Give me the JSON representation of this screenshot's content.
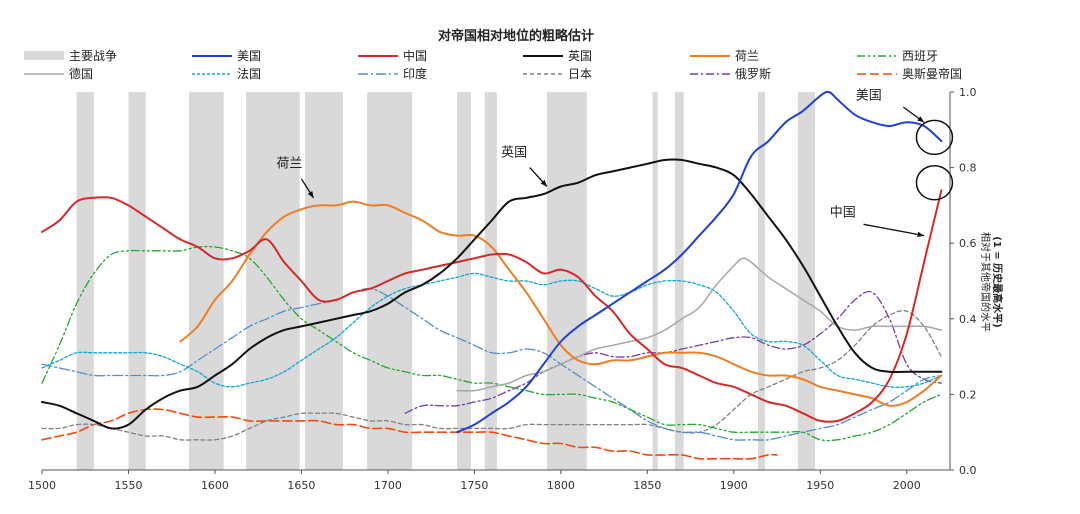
{
  "chart_data": {
    "type": "line",
    "title": "对帝国相对地位的粗略估计",
    "xlabel": "",
    "ylabel": "相对于其他帝国的水平",
    "ylabel_sub": "(1 = 历史最高水平)",
    "xlim": [
      1500,
      2025
    ],
    "ylim": [
      0,
      1.0
    ],
    "x_ticks": [
      "1500",
      "1550",
      "1600",
      "1650",
      "1700",
      "1750",
      "1800",
      "1850",
      "1900",
      "1950",
      "2000"
    ],
    "y_ticks": [
      "0.0",
      "0.2",
      "0.4",
      "0.6",
      "0.8",
      "1.0"
    ],
    "grid": false,
    "legend_position": "top",
    "war_label": "主要战争",
    "war_color": "#d9d9d9",
    "wars": [
      [
        1520,
        1530
      ],
      [
        1550,
        1560
      ],
      [
        1585,
        1605
      ],
      [
        1618,
        1649
      ],
      [
        1652,
        1674
      ],
      [
        1688,
        1714
      ],
      [
        1740,
        1748
      ],
      [
        1756,
        1763
      ],
      [
        1792,
        1815
      ],
      [
        1853,
        1856
      ],
      [
        1866,
        1871
      ],
      [
        1914,
        1918
      ],
      [
        1937,
        1947
      ]
    ],
    "series": [
      {
        "name": "美国",
        "color": "#1f3fd6",
        "dash": "solid",
        "width": 2,
        "x": [
          1740,
          1750,
          1760,
          1770,
          1780,
          1790,
          1800,
          1810,
          1820,
          1830,
          1840,
          1850,
          1860,
          1870,
          1880,
          1890,
          1900,
          1910,
          1920,
          1930,
          1940,
          1950,
          1955,
          1960,
          1970,
          1980,
          1990,
          2000,
          2010,
          2020
        ],
        "y": [
          0.1,
          0.12,
          0.15,
          0.18,
          0.22,
          0.28,
          0.34,
          0.38,
          0.41,
          0.44,
          0.47,
          0.5,
          0.53,
          0.57,
          0.62,
          0.67,
          0.73,
          0.83,
          0.87,
          0.92,
          0.95,
          0.99,
          1.0,
          0.98,
          0.94,
          0.92,
          0.91,
          0.92,
          0.91,
          0.87
        ]
      },
      {
        "name": "中国",
        "color": "#d62828",
        "dash": "solid",
        "width": 2,
        "x": [
          1500,
          1510,
          1520,
          1530,
          1540,
          1550,
          1560,
          1570,
          1580,
          1590,
          1600,
          1610,
          1620,
          1630,
          1640,
          1650,
          1660,
          1670,
          1680,
          1690,
          1700,
          1710,
          1720,
          1730,
          1740,
          1750,
          1760,
          1770,
          1780,
          1790,
          1800,
          1810,
          1820,
          1830,
          1840,
          1850,
          1860,
          1870,
          1880,
          1890,
          1900,
          1910,
          1920,
          1930,
          1940,
          1950,
          1960,
          1970,
          1980,
          1990,
          2000,
          2010,
          2020
        ],
        "y": [
          0.63,
          0.66,
          0.71,
          0.72,
          0.72,
          0.7,
          0.67,
          0.64,
          0.61,
          0.59,
          0.56,
          0.56,
          0.58,
          0.61,
          0.55,
          0.5,
          0.45,
          0.45,
          0.47,
          0.48,
          0.5,
          0.52,
          0.53,
          0.54,
          0.55,
          0.56,
          0.57,
          0.57,
          0.55,
          0.52,
          0.53,
          0.51,
          0.46,
          0.42,
          0.36,
          0.32,
          0.28,
          0.27,
          0.25,
          0.23,
          0.22,
          0.2,
          0.18,
          0.17,
          0.15,
          0.13,
          0.13,
          0.15,
          0.18,
          0.24,
          0.36,
          0.55,
          0.74
        ]
      },
      {
        "name": "英国",
        "color": "#111111",
        "dash": "solid",
        "width": 2,
        "x": [
          1500,
          1510,
          1520,
          1530,
          1540,
          1550,
          1560,
          1570,
          1580,
          1590,
          1600,
          1610,
          1620,
          1630,
          1640,
          1650,
          1660,
          1670,
          1680,
          1690,
          1700,
          1710,
          1720,
          1730,
          1740,
          1750,
          1760,
          1770,
          1780,
          1790,
          1800,
          1810,
          1820,
          1830,
          1840,
          1850,
          1860,
          1870,
          1880,
          1890,
          1900,
          1910,
          1920,
          1930,
          1940,
          1950,
          1960,
          1970,
          1980,
          1990,
          2000,
          2010,
          2020
        ],
        "y": [
          0.18,
          0.17,
          0.15,
          0.13,
          0.11,
          0.12,
          0.16,
          0.19,
          0.21,
          0.22,
          0.25,
          0.28,
          0.32,
          0.35,
          0.37,
          0.38,
          0.39,
          0.4,
          0.41,
          0.42,
          0.44,
          0.47,
          0.49,
          0.52,
          0.56,
          0.61,
          0.66,
          0.71,
          0.72,
          0.73,
          0.75,
          0.76,
          0.78,
          0.79,
          0.8,
          0.81,
          0.82,
          0.82,
          0.81,
          0.8,
          0.78,
          0.73,
          0.67,
          0.61,
          0.54,
          0.46,
          0.38,
          0.31,
          0.27,
          0.26,
          0.26,
          0.26,
          0.26
        ]
      },
      {
        "name": "荷兰",
        "color": "#ef7d22",
        "dash": "solid",
        "width": 2,
        "x": [
          1580,
          1590,
          1600,
          1610,
          1620,
          1630,
          1640,
          1650,
          1660,
          1670,
          1680,
          1690,
          1700,
          1710,
          1720,
          1730,
          1740,
          1750,
          1760,
          1770,
          1780,
          1790,
          1800,
          1810,
          1820,
          1830,
          1840,
          1850,
          1860,
          1870,
          1880,
          1890,
          1900,
          1910,
          1920,
          1930,
          1940,
          1950,
          1960,
          1970,
          1980,
          1990,
          2000,
          2010,
          2020
        ],
        "y": [
          0.34,
          0.38,
          0.45,
          0.5,
          0.57,
          0.63,
          0.67,
          0.69,
          0.7,
          0.7,
          0.71,
          0.7,
          0.7,
          0.68,
          0.66,
          0.63,
          0.62,
          0.62,
          0.59,
          0.53,
          0.47,
          0.4,
          0.33,
          0.29,
          0.28,
          0.29,
          0.29,
          0.3,
          0.31,
          0.31,
          0.31,
          0.3,
          0.28,
          0.26,
          0.25,
          0.25,
          0.24,
          0.22,
          0.21,
          0.2,
          0.19,
          0.17,
          0.18,
          0.21,
          0.25
        ]
      },
      {
        "name": "西班牙",
        "color": "#1faa2a",
        "dash": "8 3 2 3 2 3",
        "width": 1.3,
        "x": [
          1500,
          1510,
          1520,
          1530,
          1540,
          1550,
          1560,
          1570,
          1580,
          1590,
          1600,
          1610,
          1620,
          1630,
          1640,
          1650,
          1660,
          1670,
          1680,
          1690,
          1700,
          1710,
          1720,
          1730,
          1740,
          1750,
          1760,
          1770,
          1780,
          1790,
          1800,
          1810,
          1820,
          1830,
          1840,
          1850,
          1860,
          1870,
          1880,
          1890,
          1900,
          1910,
          1920,
          1930,
          1940,
          1950,
          1960,
          1970,
          1980,
          1990,
          2000,
          2010,
          2020
        ],
        "y": [
          0.23,
          0.33,
          0.44,
          0.52,
          0.57,
          0.58,
          0.58,
          0.58,
          0.58,
          0.59,
          0.59,
          0.58,
          0.56,
          0.51,
          0.45,
          0.4,
          0.37,
          0.34,
          0.31,
          0.29,
          0.27,
          0.26,
          0.25,
          0.25,
          0.24,
          0.23,
          0.23,
          0.22,
          0.21,
          0.2,
          0.2,
          0.2,
          0.19,
          0.18,
          0.16,
          0.14,
          0.12,
          0.12,
          0.12,
          0.11,
          0.1,
          0.1,
          0.1,
          0.1,
          0.1,
          0.08,
          0.08,
          0.09,
          0.1,
          0.12,
          0.15,
          0.18,
          0.2
        ]
      },
      {
        "name": "德国",
        "color": "#a6a6a6",
        "dash": "solid",
        "width": 1.5,
        "x": [
          1740,
          1750,
          1760,
          1770,
          1780,
          1790,
          1800,
          1810,
          1820,
          1830,
          1840,
          1850,
          1860,
          1870,
          1880,
          1890,
          1900,
          1905,
          1910,
          1920,
          1930,
          1940,
          1950,
          1960,
          1970,
          1980,
          1990,
          2000,
          2010,
          2020
        ],
        "y": [
          0.21,
          0.21,
          0.22,
          0.23,
          0.25,
          0.26,
          0.28,
          0.3,
          0.32,
          0.33,
          0.34,
          0.35,
          0.37,
          0.4,
          0.43,
          0.49,
          0.54,
          0.56,
          0.55,
          0.51,
          0.48,
          0.45,
          0.42,
          0.38,
          0.37,
          0.38,
          0.38,
          0.38,
          0.38,
          0.37
        ]
      },
      {
        "name": "法国",
        "color": "#13a7d2",
        "dash": "3 2",
        "width": 1.3,
        "x": [
          1500,
          1510,
          1520,
          1530,
          1540,
          1550,
          1560,
          1570,
          1580,
          1590,
          1600,
          1610,
          1620,
          1630,
          1640,
          1650,
          1660,
          1670,
          1680,
          1690,
          1700,
          1710,
          1720,
          1730,
          1740,
          1750,
          1760,
          1770,
          1780,
          1790,
          1800,
          1810,
          1820,
          1830,
          1840,
          1850,
          1860,
          1870,
          1880,
          1890,
          1900,
          1910,
          1920,
          1930,
          1940,
          1950,
          1960,
          1970,
          1980,
          1990,
          2000,
          2010,
          2020
        ],
        "y": [
          0.27,
          0.29,
          0.31,
          0.31,
          0.31,
          0.31,
          0.31,
          0.3,
          0.28,
          0.26,
          0.23,
          0.22,
          0.23,
          0.24,
          0.26,
          0.29,
          0.32,
          0.35,
          0.39,
          0.43,
          0.46,
          0.48,
          0.49,
          0.5,
          0.51,
          0.52,
          0.51,
          0.5,
          0.5,
          0.49,
          0.5,
          0.5,
          0.48,
          0.46,
          0.47,
          0.49,
          0.5,
          0.5,
          0.49,
          0.47,
          0.42,
          0.36,
          0.34,
          0.34,
          0.33,
          0.29,
          0.25,
          0.24,
          0.23,
          0.22,
          0.22,
          0.23,
          0.25
        ]
      },
      {
        "name": "印度",
        "color": "#4f8fcf",
        "dash": "10 3 2 3",
        "width": 1.3,
        "x": [
          1500,
          1510,
          1520,
          1530,
          1540,
          1550,
          1560,
          1570,
          1580,
          1590,
          1600,
          1610,
          1620,
          1630,
          1640,
          1650,
          1660,
          1670,
          1680,
          1690,
          1700,
          1710,
          1720,
          1730,
          1740,
          1750,
          1760,
          1770,
          1780,
          1790,
          1800,
          1810,
          1820,
          1830,
          1840,
          1850,
          1860,
          1870,
          1880,
          1890,
          1900,
          1910,
          1920,
          1930,
          1940,
          1950,
          1960,
          1970,
          1980,
          1990,
          2000,
          2010,
          2020
        ],
        "y": [
          0.28,
          0.27,
          0.26,
          0.25,
          0.25,
          0.25,
          0.25,
          0.25,
          0.26,
          0.29,
          0.32,
          0.35,
          0.38,
          0.4,
          0.42,
          0.43,
          0.44,
          0.45,
          0.47,
          0.48,
          0.46,
          0.43,
          0.4,
          0.37,
          0.35,
          0.33,
          0.31,
          0.31,
          0.32,
          0.31,
          0.28,
          0.25,
          0.22,
          0.19,
          0.16,
          0.13,
          0.11,
          0.1,
          0.1,
          0.09,
          0.08,
          0.08,
          0.08,
          0.09,
          0.1,
          0.11,
          0.12,
          0.14,
          0.16,
          0.18,
          0.21,
          0.24,
          0.25
        ]
      },
      {
        "name": "日本",
        "color": "#808080",
        "dash": "4 3",
        "width": 1.3,
        "x": [
          1500,
          1510,
          1520,
          1530,
          1540,
          1550,
          1560,
          1570,
          1580,
          1590,
          1600,
          1610,
          1620,
          1630,
          1640,
          1650,
          1660,
          1670,
          1680,
          1690,
          1700,
          1710,
          1720,
          1730,
          1740,
          1750,
          1760,
          1770,
          1780,
          1790,
          1800,
          1810,
          1820,
          1830,
          1840,
          1850,
          1860,
          1870,
          1880,
          1890,
          1900,
          1910,
          1920,
          1930,
          1940,
          1950,
          1960,
          1970,
          1980,
          1990,
          2000,
          2010,
          2020
        ],
        "y": [
          0.11,
          0.11,
          0.12,
          0.12,
          0.11,
          0.1,
          0.09,
          0.09,
          0.08,
          0.08,
          0.08,
          0.09,
          0.11,
          0.13,
          0.14,
          0.15,
          0.15,
          0.15,
          0.14,
          0.13,
          0.13,
          0.12,
          0.12,
          0.11,
          0.11,
          0.11,
          0.11,
          0.11,
          0.12,
          0.12,
          0.12,
          0.12,
          0.12,
          0.12,
          0.12,
          0.12,
          0.11,
          0.1,
          0.1,
          0.12,
          0.16,
          0.2,
          0.22,
          0.24,
          0.26,
          0.27,
          0.29,
          0.33,
          0.38,
          0.41,
          0.42,
          0.38,
          0.3
        ]
      },
      {
        "name": "俄罗斯",
        "color": "#7b3aa8",
        "dash": "8 3 2 3",
        "width": 1.3,
        "x": [
          1710,
          1720,
          1730,
          1740,
          1750,
          1760,
          1770,
          1780,
          1790,
          1800,
          1810,
          1820,
          1830,
          1840,
          1850,
          1860,
          1870,
          1880,
          1890,
          1900,
          1910,
          1920,
          1930,
          1940,
          1950,
          1960,
          1970,
          1980,
          1990,
          2000,
          2010,
          2020
        ],
        "y": [
          0.15,
          0.17,
          0.17,
          0.17,
          0.18,
          0.19,
          0.21,
          0.23,
          0.26,
          0.28,
          0.3,
          0.31,
          0.3,
          0.3,
          0.31,
          0.31,
          0.32,
          0.33,
          0.34,
          0.35,
          0.35,
          0.33,
          0.32,
          0.33,
          0.36,
          0.4,
          0.45,
          0.47,
          0.4,
          0.28,
          0.24,
          0.23
        ]
      },
      {
        "name": "奥斯曼帝国",
        "color": "#f04a0c",
        "dash": "9 4",
        "width": 1.6,
        "x": [
          1500,
          1510,
          1520,
          1530,
          1540,
          1550,
          1560,
          1570,
          1580,
          1590,
          1600,
          1610,
          1620,
          1630,
          1640,
          1650,
          1660,
          1670,
          1680,
          1690,
          1700,
          1710,
          1720,
          1730,
          1740,
          1750,
          1760,
          1770,
          1780,
          1790,
          1800,
          1810,
          1820,
          1830,
          1840,
          1850,
          1860,
          1870,
          1880,
          1890,
          1900,
          1910,
          1920,
          1925
        ],
        "y": [
          0.08,
          0.09,
          0.1,
          0.12,
          0.13,
          0.15,
          0.16,
          0.16,
          0.15,
          0.14,
          0.14,
          0.14,
          0.13,
          0.13,
          0.13,
          0.13,
          0.13,
          0.12,
          0.12,
          0.11,
          0.11,
          0.1,
          0.1,
          0.1,
          0.1,
          0.1,
          0.1,
          0.09,
          0.08,
          0.07,
          0.07,
          0.06,
          0.06,
          0.05,
          0.05,
          0.04,
          0.04,
          0.04,
          0.03,
          0.03,
          0.03,
          0.03,
          0.04,
          0.04
        ]
      }
    ],
    "annotations": [
      {
        "text": "荷兰",
        "x": 1643,
        "y": 0.8
      },
      {
        "text": "英国",
        "x": 1773,
        "y": 0.83
      },
      {
        "text": "美国",
        "x": 1978,
        "y": 0.98
      },
      {
        "text": "中国",
        "x": 1963,
        "y": 0.67
      }
    ]
  }
}
